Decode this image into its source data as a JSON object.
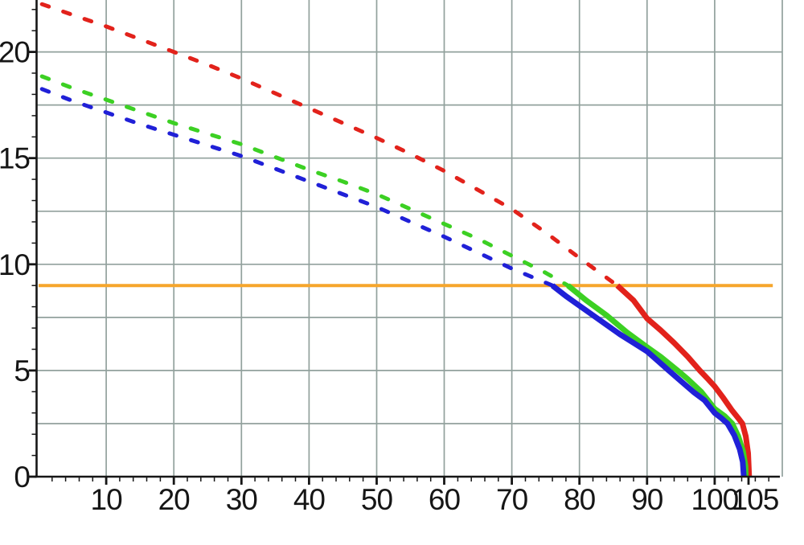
{
  "chart_data": {
    "type": "line",
    "title": "",
    "xlabel": "",
    "ylabel": "",
    "legend": "none",
    "grid": true,
    "x_range_visible": [
      0,
      110
    ],
    "y_range_visible": [
      0,
      22.4
    ],
    "x_gridline_values": [
      10,
      20,
      30,
      40,
      50,
      60,
      70,
      80,
      90,
      100,
      110
    ],
    "y_gridline_values": [
      2.5,
      5,
      7.5,
      10,
      12.5,
      15,
      17.5,
      20
    ],
    "x_major_ticks": [
      {
        "value": 10,
        "label": "10",
        "dx": 0
      },
      {
        "value": 20,
        "label": "20",
        "dx": 0
      },
      {
        "value": 30,
        "label": "30",
        "dx": 0
      },
      {
        "value": 40,
        "label": "40",
        "dx": 0
      },
      {
        "value": 50,
        "label": "50",
        "dx": 0
      },
      {
        "value": 60,
        "label": "60",
        "dx": 0
      },
      {
        "value": 70,
        "label": "70",
        "dx": 0
      },
      {
        "value": 80,
        "label": "80",
        "dx": 0
      },
      {
        "value": 90,
        "label": "90",
        "dx": 0
      },
      {
        "value": 100,
        "label": "100",
        "dx": 0
      },
      {
        "value": 105,
        "label": "105",
        "dx": 8
      }
    ],
    "y_major_ticks": [
      {
        "value": 0,
        "label": "0"
      },
      {
        "value": 5,
        "label": "5"
      },
      {
        "value": 10,
        "label": "10"
      },
      {
        "value": 15,
        "label": "15"
      },
      {
        "value": 20,
        "label": "20"
      }
    ],
    "x_minor_tick_step": 2,
    "x_minor_tick_max": 108,
    "y_minor_tick_step": 1,
    "y_minor_tick_max": 22,
    "colors": {
      "red": "#e2221b",
      "green": "#3cd023",
      "blue": "#2020d7",
      "orange": "#f6a62c",
      "grid": "#92a19d",
      "axis": "#161616",
      "label": "#161616"
    },
    "series": [
      {
        "name": "orange-horizontal-line",
        "style": "solid",
        "width": 4,
        "color_key": "orange",
        "points": [
          [
            0,
            9
          ],
          [
            108.6,
            9
          ]
        ]
      },
      {
        "name": "red-dashed-curve",
        "style": "dashed",
        "width": 5,
        "color_key": "red",
        "points": [
          [
            0.5,
            22.25
          ],
          [
            5,
            21.75
          ],
          [
            10,
            21.2
          ],
          [
            15,
            20.6
          ],
          [
            20,
            20.0
          ],
          [
            25,
            19.4
          ],
          [
            30,
            18.75
          ],
          [
            35,
            18.05
          ],
          [
            40,
            17.35
          ],
          [
            45,
            16.65
          ],
          [
            50,
            15.95
          ],
          [
            55,
            15.2
          ],
          [
            60,
            14.4
          ],
          [
            65,
            13.5
          ],
          [
            70,
            12.6
          ],
          [
            75,
            11.5
          ],
          [
            80,
            10.3
          ],
          [
            85.6,
            9.0
          ]
        ]
      },
      {
        "name": "green-dashed-curve",
        "style": "dashed",
        "width": 5,
        "color_key": "green",
        "points": [
          [
            0.5,
            18.85
          ],
          [
            5,
            18.3
          ],
          [
            10,
            17.75
          ],
          [
            15,
            17.2
          ],
          [
            20,
            16.65
          ],
          [
            25,
            16.15
          ],
          [
            30,
            15.65
          ],
          [
            35,
            15.05
          ],
          [
            40,
            14.45
          ],
          [
            45,
            13.9
          ],
          [
            50,
            13.3
          ],
          [
            55,
            12.6
          ],
          [
            60,
            11.9
          ],
          [
            65,
            11.2
          ],
          [
            70,
            10.4
          ],
          [
            75,
            9.6
          ],
          [
            78.3,
            9.0
          ]
        ]
      },
      {
        "name": "blue-dashed-curve",
        "style": "dashed",
        "width": 5,
        "color_key": "blue",
        "points": [
          [
            0.5,
            18.25
          ],
          [
            5,
            17.7
          ],
          [
            10,
            17.15
          ],
          [
            15,
            16.6
          ],
          [
            20,
            16.1
          ],
          [
            25,
            15.6
          ],
          [
            30,
            15.1
          ],
          [
            35,
            14.5
          ],
          [
            40,
            13.9
          ],
          [
            45,
            13.3
          ],
          [
            50,
            12.7
          ],
          [
            55,
            12.0
          ],
          [
            60,
            11.3
          ],
          [
            65,
            10.55
          ],
          [
            70,
            9.8
          ],
          [
            73,
            9.4
          ],
          [
            76,
            9.0
          ]
        ]
      },
      {
        "name": "red-solid-curve",
        "style": "solid",
        "width": 7,
        "color_key": "red",
        "points": [
          [
            85.6,
            9.0
          ],
          [
            88,
            8.3
          ],
          [
            90,
            7.45
          ],
          [
            92,
            6.9
          ],
          [
            94,
            6.3
          ],
          [
            96,
            5.65
          ],
          [
            97.8,
            5.0
          ],
          [
            99,
            4.6
          ],
          [
            100,
            4.25
          ],
          [
            101.3,
            3.7
          ],
          [
            102.5,
            3.15
          ],
          [
            103.5,
            2.75
          ],
          [
            104.1,
            2.5
          ],
          [
            104.6,
            1.9
          ],
          [
            104.95,
            1.1
          ],
          [
            105.1,
            0.0
          ]
        ]
      },
      {
        "name": "green-solid-curve",
        "style": "solid",
        "width": 7,
        "color_key": "green",
        "points": [
          [
            78.3,
            9.0
          ],
          [
            81,
            8.3
          ],
          [
            84,
            7.6
          ],
          [
            87,
            6.8
          ],
          [
            90,
            6.1
          ],
          [
            92,
            5.65
          ],
          [
            94.5,
            5.0
          ],
          [
            96,
            4.6
          ],
          [
            98,
            4.0
          ],
          [
            100,
            3.2
          ],
          [
            101.5,
            2.85
          ],
          [
            102.6,
            2.5
          ],
          [
            103.5,
            1.9
          ],
          [
            104.2,
            1.2
          ],
          [
            104.55,
            0.5
          ],
          [
            104.6,
            0.0
          ]
        ]
      },
      {
        "name": "blue-solid-curve",
        "style": "solid",
        "width": 7,
        "color_key": "blue",
        "points": [
          [
            76,
            9.0
          ],
          [
            78,
            8.5
          ],
          [
            80,
            8.05
          ],
          [
            82,
            7.6
          ],
          [
            84,
            7.15
          ],
          [
            86,
            6.7
          ],
          [
            88,
            6.3
          ],
          [
            90,
            5.9
          ],
          [
            91.6,
            5.45
          ],
          [
            93.2,
            5.0
          ],
          [
            95,
            4.5
          ],
          [
            97,
            3.95
          ],
          [
            98.5,
            3.6
          ],
          [
            100,
            3.0
          ],
          [
            101,
            2.75
          ],
          [
            101.9,
            2.5
          ],
          [
            102.9,
            1.95
          ],
          [
            103.7,
            1.3
          ],
          [
            104.15,
            0.7
          ],
          [
            104.3,
            0.0
          ]
        ]
      }
    ]
  }
}
